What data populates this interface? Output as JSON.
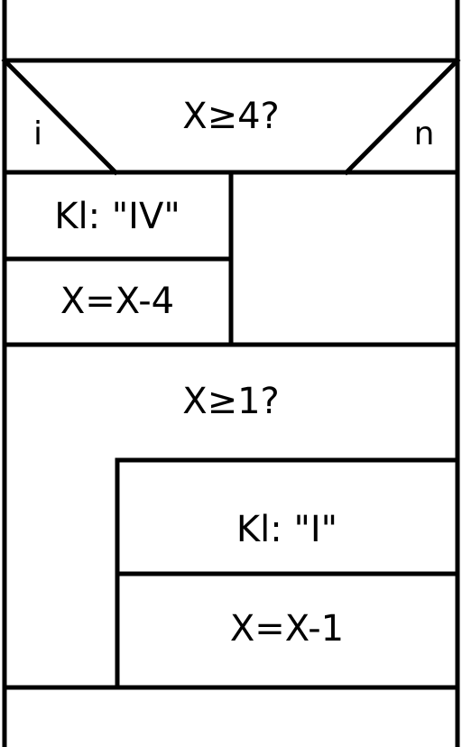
{
  "diagram": {
    "if_block": {
      "condition": "X≥4?",
      "yes_label": "i",
      "no_label": "n",
      "yes_branch": [
        "Kl: \"IV\"",
        "X=X-4"
      ],
      "no_branch": []
    },
    "while_block": {
      "condition": "X≥1?",
      "body": [
        "Kl: \"I\"",
        "X=X-1"
      ]
    }
  }
}
